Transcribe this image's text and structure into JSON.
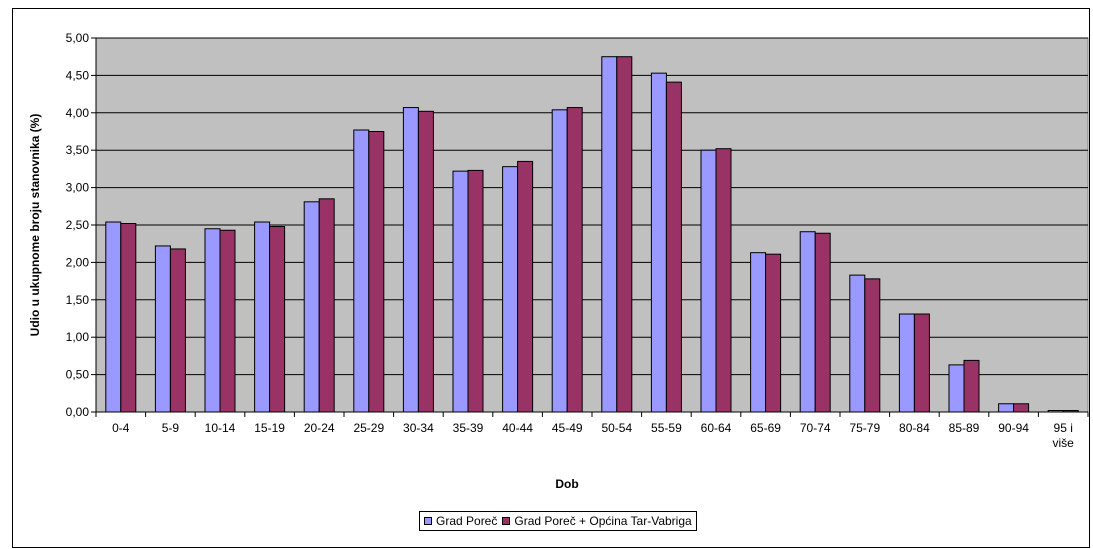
{
  "chart_data": {
    "type": "bar",
    "title": "",
    "xlabel": "Dob",
    "ylabel": "Udio u ukupnome broju stanovnika (%)",
    "ylim": [
      0,
      5
    ],
    "y_tick_step": 0.5,
    "y_tick_labels": [
      "0,00",
      "0,50",
      "1,00",
      "1,50",
      "2,00",
      "2,50",
      "3,00",
      "3,50",
      "4,00",
      "4,50",
      "5,00"
    ],
    "grid": true,
    "legend_position": "bottom",
    "categories": [
      "0-4",
      "5-9",
      "10-14",
      "15-19",
      "20-24",
      "25-29",
      "30-34",
      "35-39",
      "40-44",
      "45-49",
      "50-54",
      "55-59",
      "60-64",
      "65-69",
      "70-74",
      "75-79",
      "80-84",
      "85-89",
      "90-94",
      "95 i više"
    ],
    "category_label_lines": [
      [
        "0-4"
      ],
      [
        "5-9"
      ],
      [
        "10-14"
      ],
      [
        "15-19"
      ],
      [
        "20-24"
      ],
      [
        "25-29"
      ],
      [
        "30-34"
      ],
      [
        "35-39"
      ],
      [
        "40-44"
      ],
      [
        "45-49"
      ],
      [
        "50-54"
      ],
      [
        "55-59"
      ],
      [
        "60-64"
      ],
      [
        "65-69"
      ],
      [
        "70-74"
      ],
      [
        "75-79"
      ],
      [
        "80-84"
      ],
      [
        "85-89"
      ],
      [
        "90-94"
      ],
      [
        "95 i",
        "više"
      ]
    ],
    "series": [
      {
        "name": "Grad Poreč",
        "color": "#9999ff",
        "values": [
          2.54,
          2.22,
          2.45,
          2.54,
          2.81,
          3.77,
          4.07,
          3.22,
          3.28,
          4.04,
          4.75,
          4.53,
          3.5,
          2.13,
          2.41,
          1.83,
          1.31,
          0.63,
          0.11,
          0.02
        ]
      },
      {
        "name": "Grad Poreč + Općina Tar-Vabriga",
        "color": "#993366",
        "values": [
          2.52,
          2.18,
          2.43,
          2.48,
          2.85,
          3.75,
          4.02,
          3.23,
          3.35,
          4.07,
          4.75,
          4.41,
          3.52,
          2.11,
          2.39,
          1.78,
          1.31,
          0.69,
          0.11,
          0.02
        ]
      }
    ],
    "plot_background": "#c0c0c0"
  }
}
